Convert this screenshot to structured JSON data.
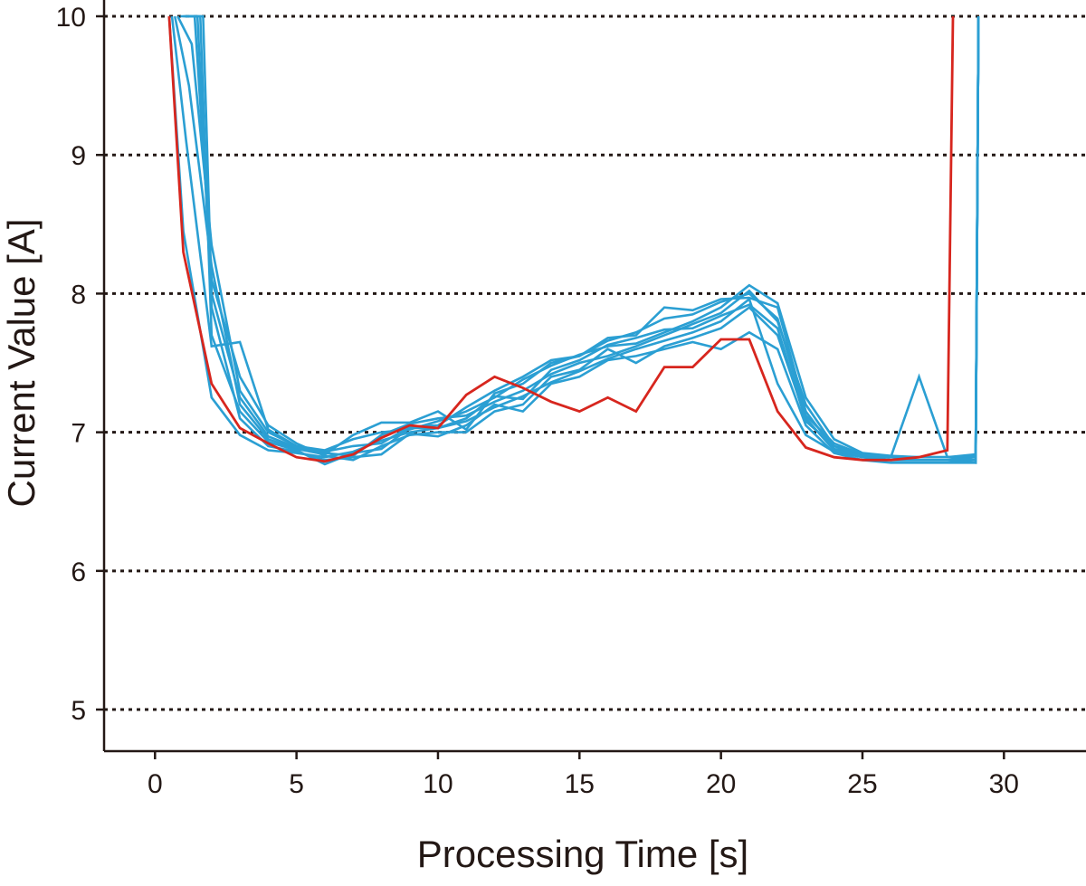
{
  "chart_data": {
    "type": "line",
    "xlabel": "Processing Time [s]",
    "ylabel": "Current Value [A]",
    "xlim": [
      -1.8,
      32.9
    ],
    "ylim": [
      4.7,
      10
    ],
    "xticks": [
      0,
      5,
      10,
      15,
      20,
      25,
      30
    ],
    "yticks": [
      5,
      6,
      7,
      8,
      9,
      10
    ],
    "grid": "horizontal dotted",
    "legend": "none",
    "colors": {
      "highlight": "#d7261e",
      "series": "#2b9fd3",
      "axis": "#231815"
    },
    "highlight_series": {
      "x": [
        0.5,
        1,
        2,
        3,
        4,
        5,
        6,
        7,
        8,
        9,
        10,
        11,
        12,
        13,
        14,
        15,
        16,
        17,
        18,
        19,
        20,
        21,
        22,
        23,
        24,
        25,
        26,
        27,
        28,
        28.2
      ],
      "y": [
        10.0,
        8.3,
        7.35,
        7.03,
        6.92,
        6.82,
        6.79,
        6.84,
        6.96,
        7.05,
        7.03,
        7.27,
        7.4,
        7.32,
        7.22,
        7.15,
        7.25,
        7.15,
        7.47,
        7.47,
        7.67,
        7.67,
        7.15,
        6.89,
        6.82,
        6.8,
        6.8,
        6.82,
        6.87,
        10.0
      ]
    },
    "series": [
      {
        "x": [
          0.5,
          1,
          2,
          3,
          4,
          5,
          6,
          7,
          8,
          9,
          10,
          11,
          12,
          13,
          14,
          15,
          16,
          17,
          18,
          19,
          20,
          21,
          22,
          23,
          24,
          25,
          26,
          27,
          28,
          29,
          29.1
        ],
        "y": [
          10.0,
          8.45,
          7.25,
          6.98,
          6.87,
          6.85,
          6.82,
          6.86,
          6.94,
          7.0,
          7.03,
          7.08,
          7.18,
          7.26,
          7.36,
          7.44,
          7.53,
          7.6,
          7.66,
          7.72,
          7.8,
          7.96,
          7.35,
          6.98,
          6.86,
          6.82,
          6.8,
          6.8,
          6.8,
          6.8,
          10.0
        ]
      },
      {
        "x": [
          0.6,
          1.1,
          2,
          3,
          4,
          5,
          6,
          7,
          8,
          9,
          10,
          11,
          12,
          13,
          14,
          15,
          16,
          17,
          18,
          19,
          20,
          21,
          22,
          23,
          24,
          25,
          26,
          27,
          28,
          29,
          29.1
        ],
        "y": [
          10.0,
          9.1,
          7.62,
          7.65,
          7.02,
          6.9,
          6.85,
          6.83,
          6.98,
          7.06,
          7.1,
          7.12,
          7.22,
          7.3,
          7.42,
          7.5,
          7.55,
          7.62,
          7.7,
          7.78,
          7.86,
          8.02,
          7.8,
          7.2,
          6.9,
          6.84,
          6.82,
          6.82,
          6.82,
          6.82,
          10.0
        ]
      },
      {
        "x": [
          0.7,
          1.2,
          2,
          3,
          4,
          5,
          6,
          7,
          8,
          9,
          10,
          11,
          12,
          13,
          14,
          15,
          16,
          17,
          18,
          19,
          20,
          21,
          22,
          23,
          24,
          25,
          26,
          27,
          28,
          29,
          29.1
        ],
        "y": [
          10.0,
          9.5,
          8.2,
          7.2,
          6.95,
          6.88,
          6.84,
          6.98,
          7.07,
          7.07,
          7.15,
          7.02,
          7.28,
          7.35,
          7.5,
          7.55,
          7.68,
          7.7,
          7.9,
          7.88,
          7.96,
          7.97,
          7.9,
          7.15,
          6.88,
          6.83,
          6.82,
          7.4,
          6.82,
          6.84,
          10.0
        ]
      },
      {
        "x": [
          0.8,
          1.3,
          2,
          3,
          4,
          5,
          6,
          7,
          8,
          9,
          10,
          11,
          12,
          13,
          14,
          15,
          16,
          17,
          18,
          19,
          20,
          21,
          22,
          23,
          24,
          25,
          26,
          27,
          28,
          29,
          29.1
        ],
        "y": [
          10.0,
          9.8,
          8.35,
          7.3,
          7.0,
          6.9,
          6.87,
          6.95,
          7.0,
          7.02,
          7.08,
          7.15,
          7.25,
          7.38,
          7.48,
          7.56,
          7.62,
          7.64,
          7.72,
          7.8,
          7.9,
          8.06,
          7.93,
          7.25,
          6.95,
          6.85,
          6.83,
          6.82,
          6.82,
          6.83,
          10.0
        ]
      },
      {
        "x": [
          0.9,
          1.4,
          2,
          3,
          4,
          5,
          6,
          7,
          8,
          9,
          10,
          11,
          12,
          13,
          14,
          15,
          16,
          17,
          18,
          19,
          20,
          21,
          22,
          23,
          24,
          25,
          26,
          27,
          28,
          29,
          29.1
        ],
        "y": [
          10.0,
          10.0,
          8.1,
          7.4,
          7.05,
          6.92,
          6.83,
          6.8,
          6.9,
          6.98,
          7.0,
          7.0,
          7.15,
          7.2,
          7.4,
          7.45,
          7.6,
          7.5,
          7.62,
          7.68,
          7.75,
          7.9,
          7.7,
          7.1,
          6.87,
          6.83,
          6.8,
          6.8,
          6.8,
          6.8,
          10.0
        ]
      },
      {
        "x": [
          1.0,
          1.5,
          2,
          3,
          4,
          5,
          6,
          7,
          8,
          9,
          10,
          11,
          12,
          13,
          14,
          15,
          16,
          17,
          18,
          19,
          20,
          21,
          22,
          23,
          24,
          25,
          26,
          27,
          28,
          29,
          29.1
        ],
        "y": [
          10.0,
          10.0,
          7.9,
          7.1,
          6.9,
          6.86,
          6.8,
          6.82,
          6.84,
          6.99,
          6.97,
          7.05,
          7.2,
          7.15,
          7.35,
          7.4,
          7.52,
          7.55,
          7.6,
          7.65,
          7.6,
          7.72,
          7.6,
          7.05,
          6.85,
          6.8,
          6.78,
          6.78,
          6.78,
          6.78,
          10.0
        ]
      },
      {
        "x": [
          1.1,
          1.6,
          2,
          3,
          4,
          5,
          6,
          7,
          8,
          9,
          10,
          11,
          12,
          13,
          14,
          15,
          16,
          17,
          18,
          19,
          20,
          21,
          22,
          23,
          24,
          25,
          26,
          27,
          28,
          29,
          29.1
        ],
        "y": [
          10.0,
          10.0,
          7.7,
          7.15,
          6.93,
          6.87,
          6.77,
          6.85,
          6.88,
          7.03,
          7.03,
          7.1,
          7.26,
          7.24,
          7.45,
          7.52,
          7.63,
          7.68,
          7.74,
          7.75,
          7.84,
          7.92,
          7.75,
          7.08,
          6.9,
          6.82,
          6.8,
          6.8,
          6.8,
          6.78,
          10.0
        ]
      },
      {
        "x": [
          1.2,
          1.7,
          2,
          3,
          4,
          5,
          6,
          7,
          8,
          9,
          10,
          11,
          12,
          13,
          14,
          15,
          16,
          17,
          18,
          19,
          20,
          21,
          22,
          23,
          24,
          25,
          26,
          27,
          28,
          29,
          29.1
        ],
        "y": [
          10.0,
          10.0,
          8.0,
          7.25,
          6.97,
          6.89,
          6.86,
          6.9,
          6.92,
          7.04,
          7.05,
          7.18,
          7.3,
          7.4,
          7.52,
          7.55,
          7.66,
          7.72,
          7.82,
          7.85,
          7.94,
          8.0,
          7.82,
          7.12,
          6.92,
          6.84,
          6.82,
          6.82,
          6.82,
          6.8,
          10.0
        ]
      }
    ]
  }
}
